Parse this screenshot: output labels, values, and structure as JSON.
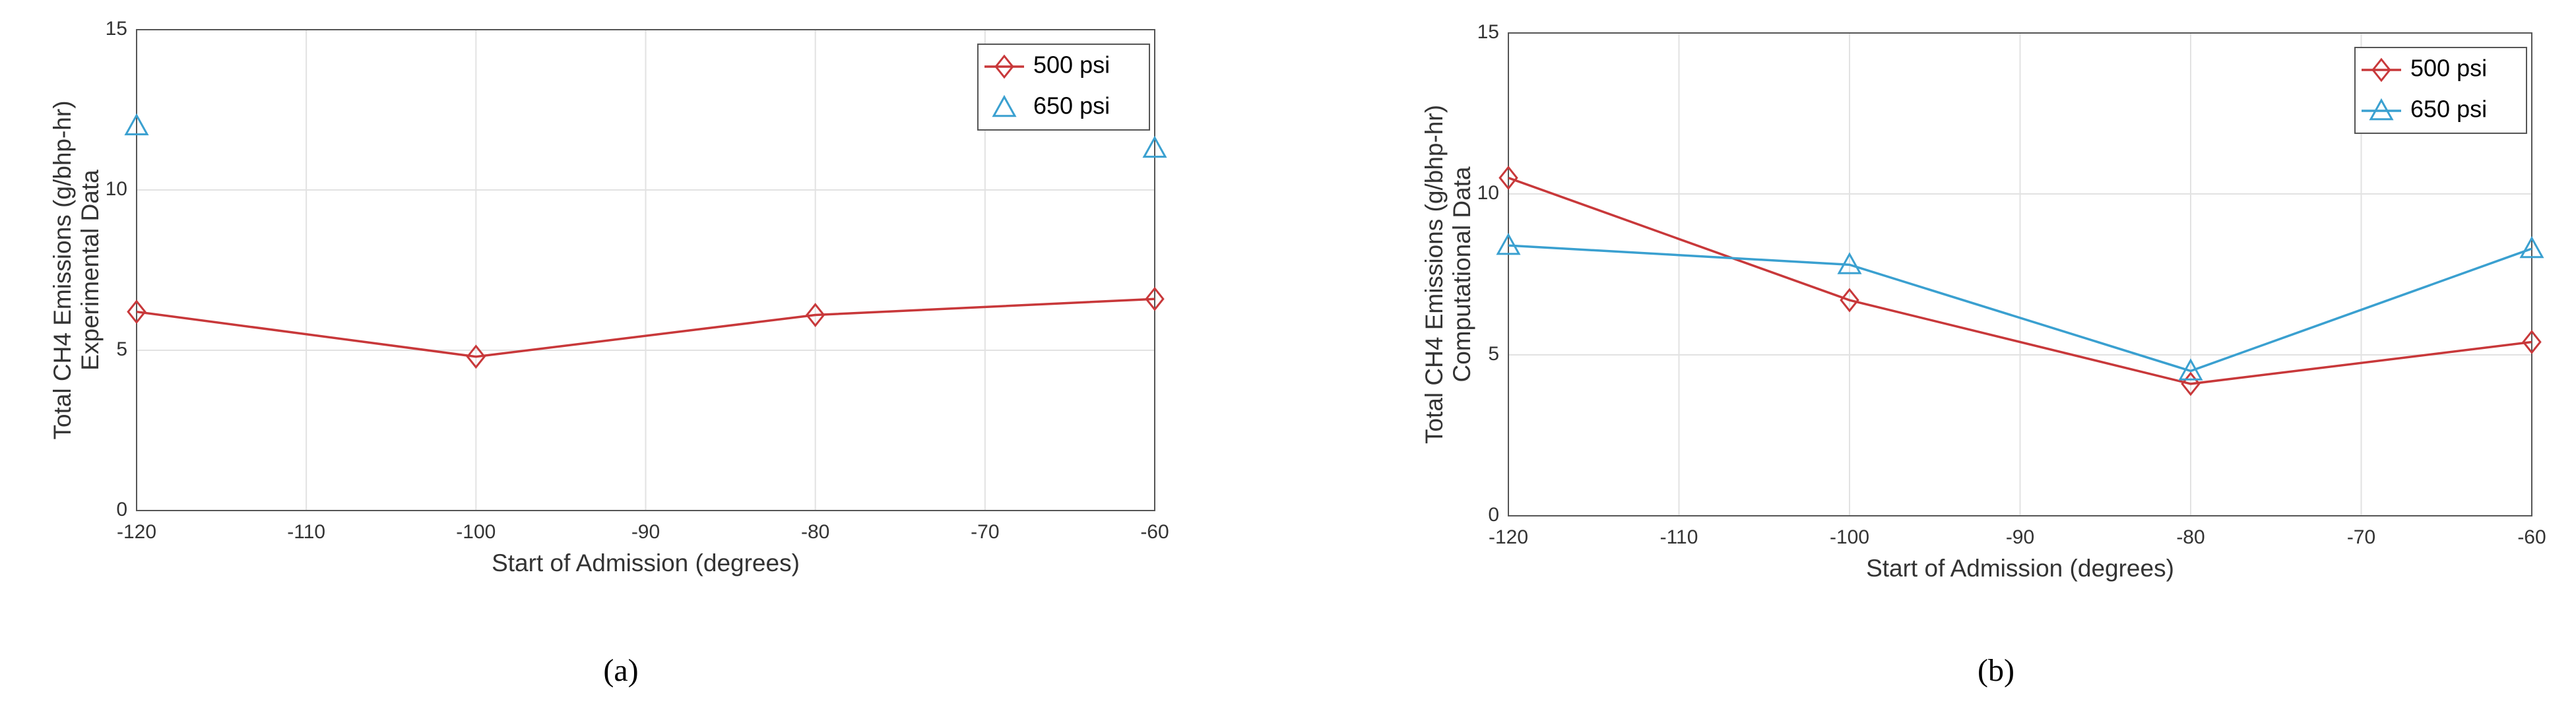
{
  "chart_data": [
    {
      "type": "line",
      "caption": "(a)",
      "xlabel": "Start of Admission (degrees)",
      "ylabel": [
        "Total CH4 Emissions (g/bhp-hr)",
        "Experimental Data"
      ],
      "x": [
        -120,
        -100,
        -80,
        -60
      ],
      "series": [
        {
          "name": "500 psi",
          "color": "#c8383a",
          "marker": "diamond",
          "values": [
            6.2,
            4.8,
            6.1,
            6.6
          ]
        },
        {
          "name": "650 psi",
          "color": "#3aa0d0",
          "marker": "triangle",
          "line": false,
          "values": [
            12.0,
            null,
            null,
            11.3
          ]
        }
      ],
      "xlim": [
        -120,
        -60
      ],
      "xticks": [
        -120,
        -110,
        -100,
        -90,
        -80,
        -70,
        -60
      ],
      "ylim": [
        0,
        15
      ],
      "yticks": [
        0,
        5,
        10,
        15
      ],
      "grid": true,
      "legend": "upper right"
    },
    {
      "type": "line",
      "caption": "(b)",
      "xlabel": "Start of Admission (degrees)",
      "ylabel": [
        "Total CH4 Emissions (g/bhp-hr)",
        "Computational Data"
      ],
      "x": [
        -120,
        -100,
        -80,
        -60
      ],
      "series": [
        {
          "name": "500 psi",
          "color": "#c8383a",
          "marker": "diamond",
          "values": [
            10.5,
            6.7,
            4.1,
            5.4
          ]
        },
        {
          "name": "650 psi",
          "color": "#3aa0d0",
          "marker": "triangle",
          "values": [
            8.4,
            7.8,
            4.5,
            8.3
          ]
        }
      ],
      "xlim": [
        -120,
        -60
      ],
      "xticks": [
        -120,
        -110,
        -100,
        -90,
        -80,
        -70,
        -60
      ],
      "ylim": [
        0,
        15
      ],
      "yticks": [
        0,
        5,
        10,
        15
      ],
      "grid": true,
      "legend": "upper right"
    }
  ]
}
